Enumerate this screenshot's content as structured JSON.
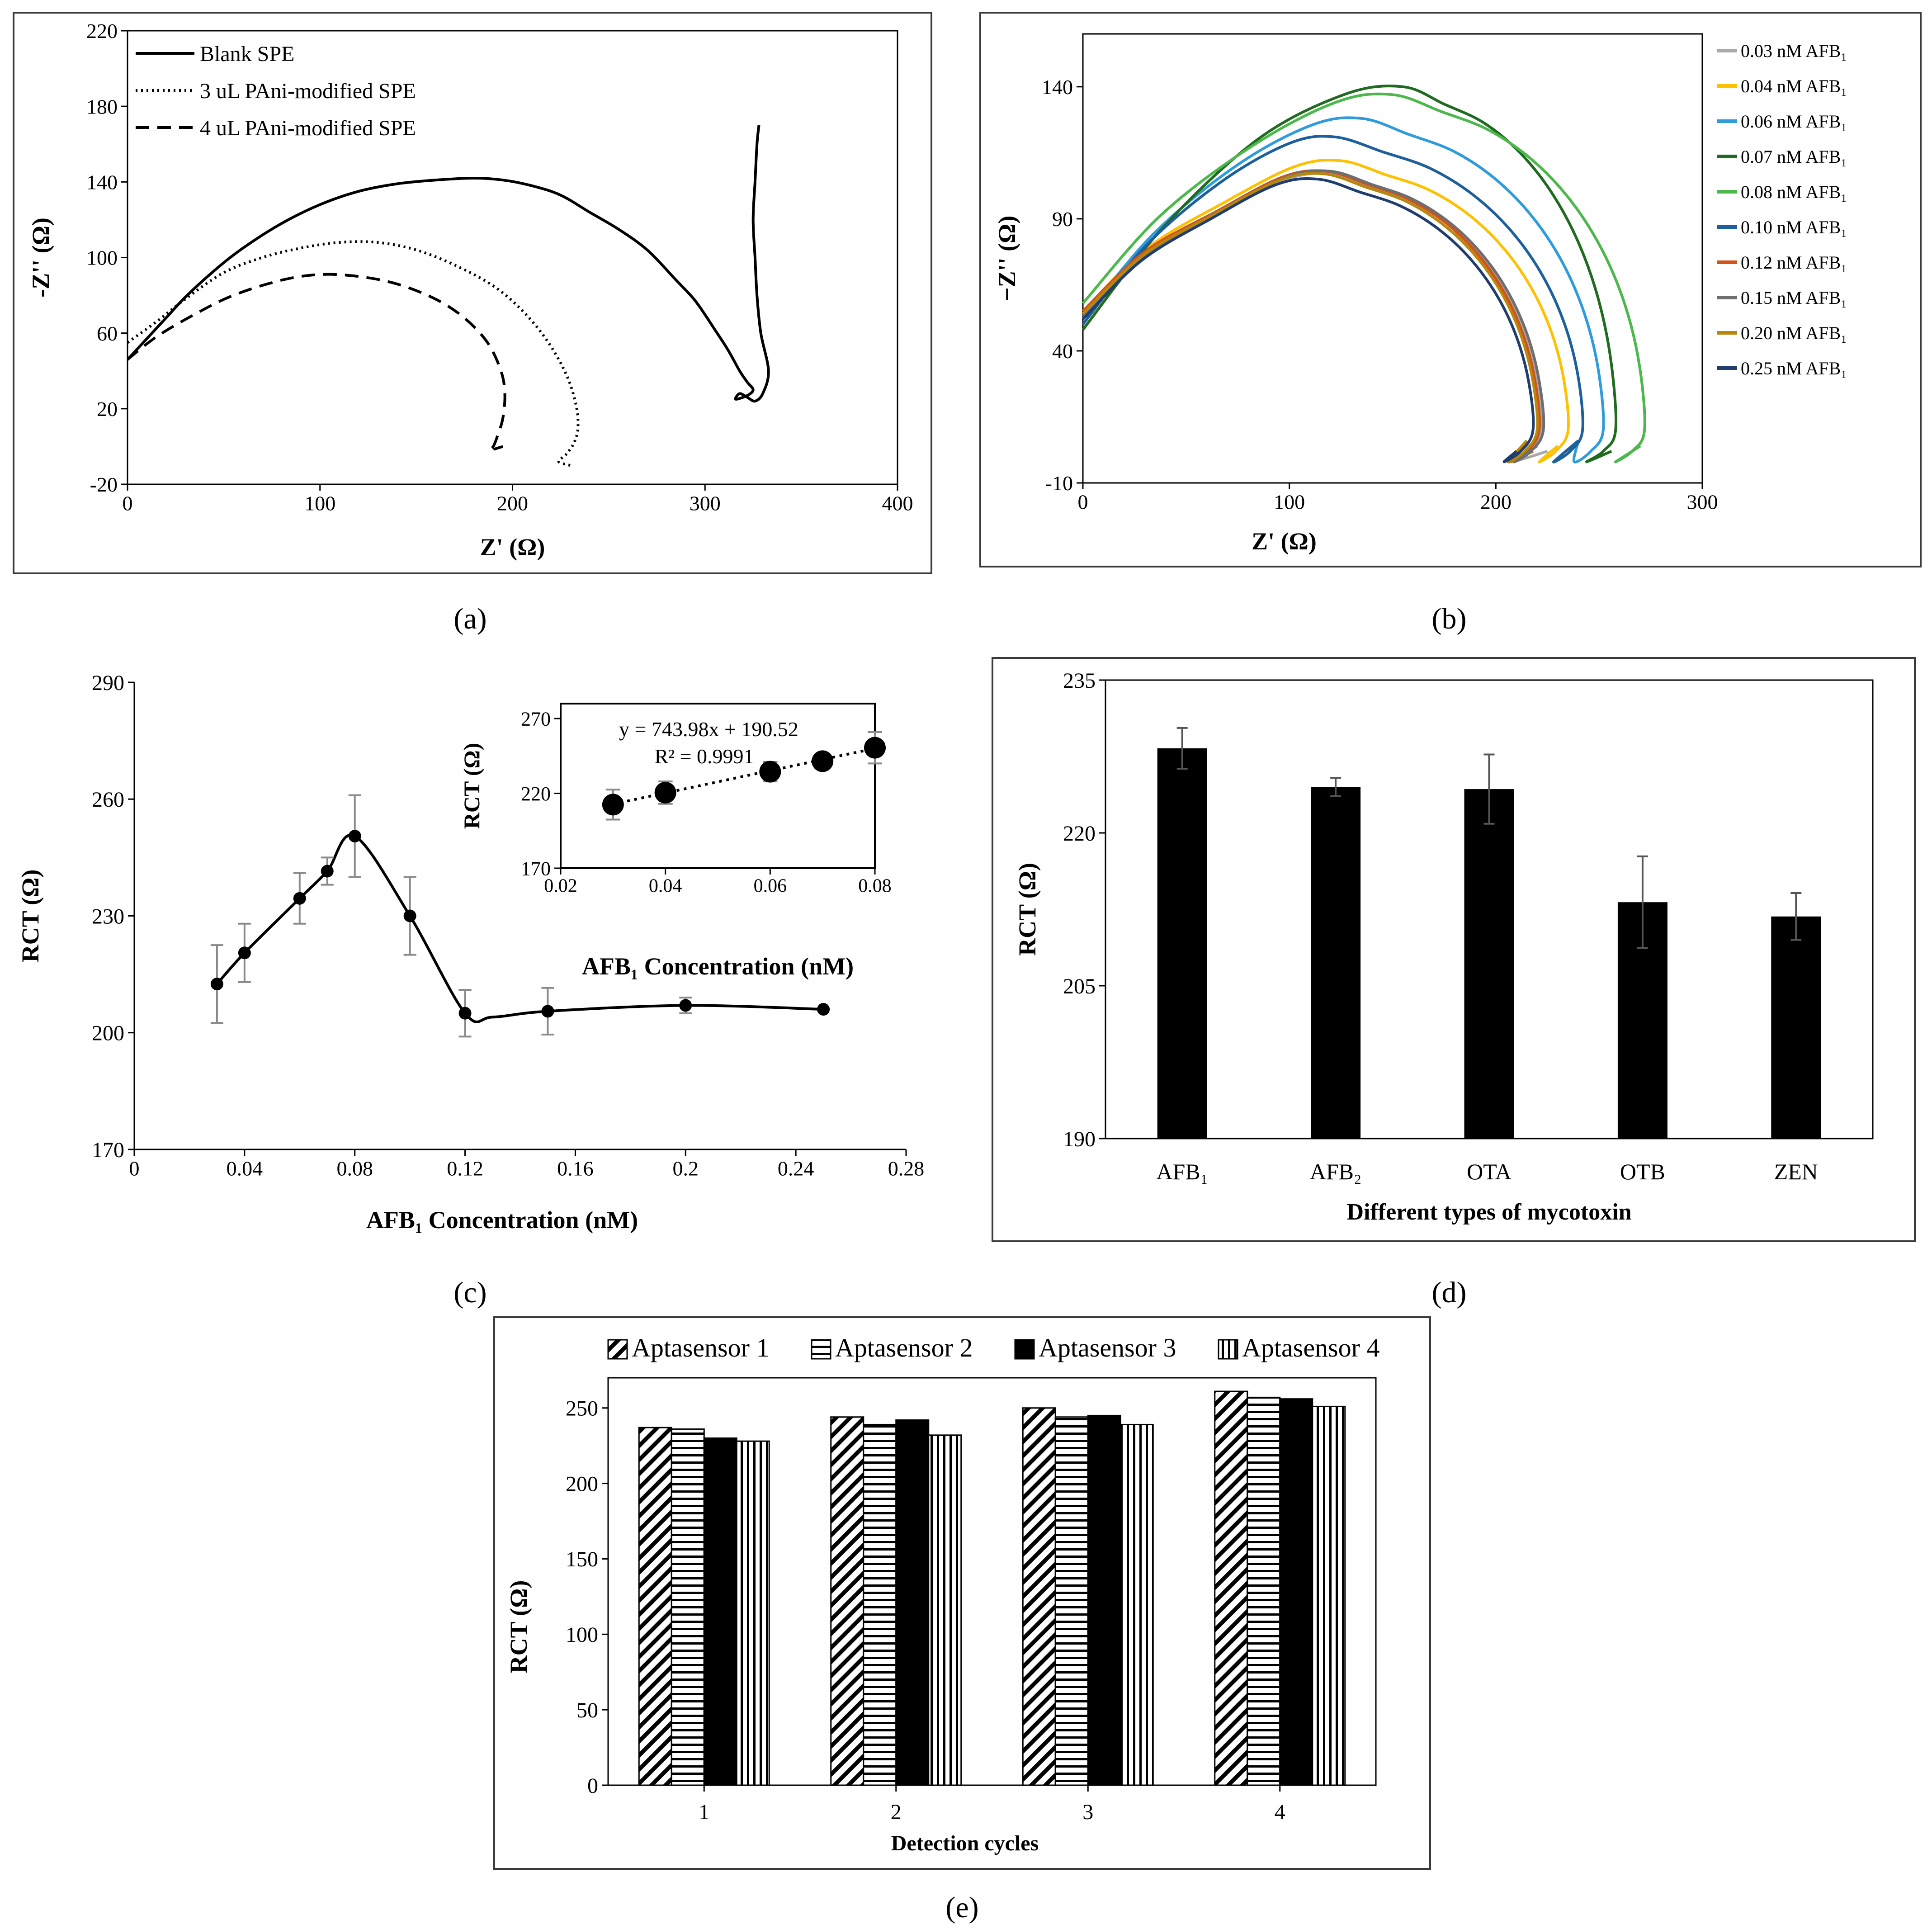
{
  "colors": {
    "frame": "#3a3a3a",
    "ink": "#000000",
    "errorbar": "#8a8a8a",
    "b_series": [
      "#a9a9a9",
      "#ffc000",
      "#2e9bdc",
      "#1f6b1f",
      "#4cb84c",
      "#1d5f9c",
      "#d2521a",
      "#6e6e6e",
      "#b8860b",
      "#1f3e6e"
    ]
  },
  "panel_labels": {
    "a": "(a)",
    "b": "(b)",
    "c": "(c)",
    "d": "(d)",
    "e": "(e)"
  },
  "chart_data": [
    {
      "id": "a",
      "type": "line",
      "xlabel": "Z' (Ω)",
      "ylabel": "-Z'' (Ω)",
      "xlim": [
        0,
        400
      ],
      "ylim": [
        -20,
        220
      ],
      "xticks": [
        "0",
        "100",
        "200",
        "300",
        "400"
      ],
      "yticks": [
        "-20",
        "20",
        "60",
        "100",
        "140",
        "180",
        "220"
      ],
      "legend": [
        "Blank SPE",
        "3 uL PAni-modified SPE",
        "4 uL PAni-modified SPE"
      ],
      "series": [
        {
          "name": "Blank SPE",
          "style": "solid",
          "x": [
            0,
            10,
            20,
            30,
            45,
            60,
            80,
            100,
            120,
            140,
            160,
            180,
            195,
            210,
            225,
            240,
            255,
            270,
            285,
            295,
            305,
            312,
            318,
            322,
            325,
            322,
            316,
            318,
            322,
            326,
            330,
            333,
            329,
            327,
            326,
            325,
            326,
            327,
            328
          ],
          "y": [
            46,
            57,
            68,
            79,
            93,
            105,
            118,
            128,
            135,
            139,
            141,
            142,
            141,
            138,
            133,
            124,
            115,
            104,
            88,
            77,
            62,
            51,
            40,
            34,
            30,
            27,
            25,
            28,
            26,
            24,
            28,
            40,
            60,
            80,
            100,
            120,
            140,
            160,
            170
          ]
        },
        {
          "name": "3 uL PAni-modified SPE",
          "style": "dotted",
          "x": [
            0,
            15,
            30,
            50,
            70,
            90,
            110,
            130,
            150,
            170,
            190,
            205,
            218,
            228,
            233,
            234,
            232,
            228,
            224,
            230
          ],
          "y": [
            55,
            66,
            78,
            92,
            100,
            105,
            108,
            108,
            104,
            96,
            85,
            72,
            56,
            38,
            22,
            10,
            2,
            -4,
            -8,
            -10
          ]
        },
        {
          "name": "4 uL PAni-modified SPE",
          "style": "dashed",
          "x": [
            0,
            15,
            35,
            55,
            80,
            100,
            120,
            140,
            160,
            175,
            187,
            194,
            196,
            195,
            192,
            190,
            188,
            195
          ],
          "y": [
            46,
            58,
            70,
            80,
            88,
            91,
            90,
            86,
            78,
            68,
            55,
            40,
            28,
            15,
            5,
            0,
            -2,
            0
          ]
        }
      ]
    },
    {
      "id": "b",
      "type": "line",
      "xlabel": "Z' (Ω)",
      "ylabel": "−Z'' (Ω)",
      "xlim": [
        0,
        300
      ],
      "ylim": [
        -10,
        160
      ],
      "xticks": [
        "0",
        "100",
        "200",
        "300"
      ],
      "yticks": [
        "-10",
        "40",
        "90",
        "140"
      ],
      "legend": [
        "0.03 nM AFB₁",
        "0.04 nM AFB₁",
        "0.06 nM AFB₁",
        "0.07 nM AFB₁",
        "0.08 nM AFB₁",
        "0.10 nM AFB₁",
        "0.12 nM AFB₁",
        "0.15 nM AFB₁",
        "0.20 nM AFB₁",
        "0.25 nM AFB₁"
      ],
      "series": [
        {
          "name": "0.03 nM AFB₁",
          "cx": 120,
          "peak": 107,
          "right": 222,
          "start": 54,
          "end": 225,
          "phase": 0
        },
        {
          "name": "0.04 nM AFB₁",
          "cx": 125,
          "peak": 112,
          "right": 235,
          "start": 55,
          "end": 230,
          "phase": 1
        },
        {
          "name": "0.06 nM AFB₁",
          "cx": 135,
          "peak": 128,
          "right": 252,
          "start": 52,
          "end": 240,
          "phase": 2
        },
        {
          "name": "0.07 nM AFB₁",
          "cx": 155,
          "peak": 140,
          "right": 258,
          "start": 48,
          "end": 256,
          "phase": 3
        },
        {
          "name": "0.08 nM AFB₁",
          "cx": 150,
          "peak": 137,
          "right": 272,
          "start": 58,
          "end": 270,
          "phase": 4
        },
        {
          "name": "0.10 nM AFB₁",
          "cx": 122,
          "peak": 121,
          "right": 242,
          "start": 50,
          "end": 240,
          "phase": 5
        },
        {
          "name": "0.12 nM AFB₁",
          "cx": 118,
          "peak": 108,
          "right": 221,
          "start": 55,
          "end": 218,
          "phase": 6
        },
        {
          "name": "0.15 nM AFB₁",
          "cx": 120,
          "peak": 108,
          "right": 223,
          "start": 53,
          "end": 220,
          "phase": 7
        },
        {
          "name": "0.20 nM AFB₁",
          "cx": 117,
          "peak": 107,
          "right": 220,
          "start": 54,
          "end": 215,
          "phase": 8
        },
        {
          "name": "0.25 nM AFB₁",
          "cx": 114,
          "peak": 105,
          "right": 218,
          "start": 52,
          "end": 210,
          "phase": 9
        }
      ]
    },
    {
      "id": "c",
      "type": "line",
      "xlabel": "AFB₁ Concentration (nM)",
      "ylabel": "RCT (Ω)",
      "xlim": [
        0,
        0.28
      ],
      "ylim": [
        170,
        290
      ],
      "xticks": [
        "0",
        "0.04",
        "0.08",
        "0.12",
        "0.16",
        "0.2",
        "0.24",
        "0.28"
      ],
      "yticks": [
        "170",
        "200",
        "230",
        "260",
        "290"
      ],
      "series": [
        {
          "name": "RCT",
          "x": [
            0.03,
            0.04,
            0.06,
            0.07,
            0.08,
            0.1,
            0.12,
            0.15,
            0.2,
            0.25
          ],
          "y": [
            212.5,
            220.5,
            234.5,
            241.5,
            250.5,
            230,
            205,
            205.5,
            207,
            206
          ],
          "err": [
            10,
            7.5,
            6.5,
            3.5,
            10.5,
            10,
            6,
            6,
            2,
            0
          ]
        }
      ],
      "inset": {
        "type": "scatter",
        "xlabel": "AFB₁ Concentration (nM)",
        "ylabel": "RCT (Ω)",
        "xlim": [
          0.02,
          0.08
        ],
        "ylim": [
          170,
          280
        ],
        "xticks": [
          "0.02",
          "0.04",
          "0.06",
          "0.08"
        ],
        "yticks": [
          "170",
          "220",
          "270"
        ],
        "equation": "y = 743.98x + 190.52",
        "r2": "R² = 0.9991",
        "x": [
          0.03,
          0.04,
          0.06,
          0.07,
          0.08
        ],
        "y": [
          212.5,
          220.5,
          234.5,
          241.5,
          250.5
        ],
        "err": [
          10,
          7.5,
          6.5,
          3.5,
          10.5
        ]
      }
    },
    {
      "id": "d",
      "type": "bar",
      "xlabel": "Different types of mycotoxin",
      "ylabel": "RCT (Ω)",
      "ylim": [
        190,
        235
      ],
      "yticks": [
        "190",
        "205",
        "220",
        "235"
      ],
      "categories": [
        "AFB₁",
        "AFB₂",
        "OTA",
        "OTB",
        "ZEN"
      ],
      "values": [
        228.3,
        224.5,
        224.3,
        213.2,
        211.8
      ],
      "err": [
        2,
        0.9,
        3.4,
        4.5,
        2.3
      ]
    },
    {
      "id": "e",
      "type": "bar",
      "xlabel": "Detection cycles",
      "ylabel": "RCT (Ω)",
      "ylim": [
        0,
        270
      ],
      "yticks": [
        "0",
        "50",
        "100",
        "150",
        "200",
        "250"
      ],
      "categories": [
        "1",
        "2",
        "3",
        "4"
      ],
      "series": [
        {
          "name": "Aptasensor 1",
          "pattern": "diag",
          "values": [
            237,
            244,
            250,
            261
          ]
        },
        {
          "name": "Aptasensor 2",
          "pattern": "hlines",
          "values": [
            236,
            239,
            244,
            257
          ]
        },
        {
          "name": "Aptasensor 3",
          "pattern": "solid",
          "values": [
            230,
            242,
            245,
            256
          ]
        },
        {
          "name": "Aptasensor 4",
          "pattern": "vlines",
          "values": [
            228,
            232,
            239,
            251
          ]
        }
      ]
    }
  ]
}
